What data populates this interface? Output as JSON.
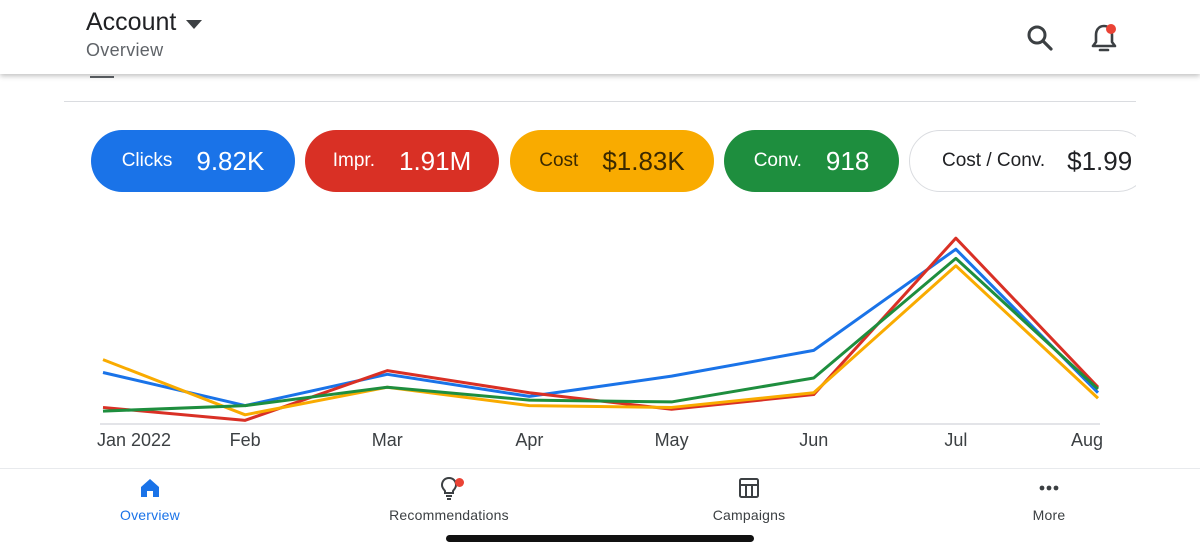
{
  "header": {
    "title": "Account",
    "subtitle": "Overview",
    "icons": [
      "search-icon",
      "notifications-bell-icon"
    ]
  },
  "metrics": [
    {
      "label": "Clicks",
      "value": "9.82K",
      "color": "#1a73e8"
    },
    {
      "label": "Impr.",
      "value": "1.91M",
      "color": "#d93025"
    },
    {
      "label": "Cost",
      "value": "$1.83K",
      "color": "#f9ab00"
    },
    {
      "label": "Conv.",
      "value": "918",
      "color": "#1e8e3e"
    },
    {
      "label": "Cost / Conv.",
      "value": "$1.99",
      "color": "#ffffff"
    }
  ],
  "chart_data": {
    "type": "line",
    "x": [
      "Jan 2022",
      "Feb",
      "Mar",
      "Apr",
      "May",
      "Jun",
      "Jul",
      "Aug"
    ],
    "ylim": [
      0,
      100
    ],
    "grid": false,
    "series": [
      {
        "color": "#1a73e8",
        "values": [
          28,
          10,
          27,
          15,
          26,
          40,
          95,
          17
        ]
      },
      {
        "color": "#d93025",
        "values": [
          9,
          2,
          29,
          17,
          8,
          16,
          101,
          20
        ]
      },
      {
        "color": "#f9ab00",
        "values": [
          35,
          5,
          20,
          10,
          9,
          17,
          86,
          14
        ]
      },
      {
        "color": "#1e8e3e",
        "values": [
          7,
          10,
          20,
          13,
          12,
          25,
          90,
          19
        ]
      }
    ]
  },
  "bottom_nav": {
    "items": [
      {
        "label": "Overview",
        "icon": "home-icon",
        "active": true
      },
      {
        "label": "Recommendations",
        "icon": "lightbulb-icon",
        "active": false
      },
      {
        "label": "Campaigns",
        "icon": "campaigns-table-icon",
        "active": false
      },
      {
        "label": "More",
        "icon": "more-dots-icon",
        "active": false
      }
    ]
  }
}
